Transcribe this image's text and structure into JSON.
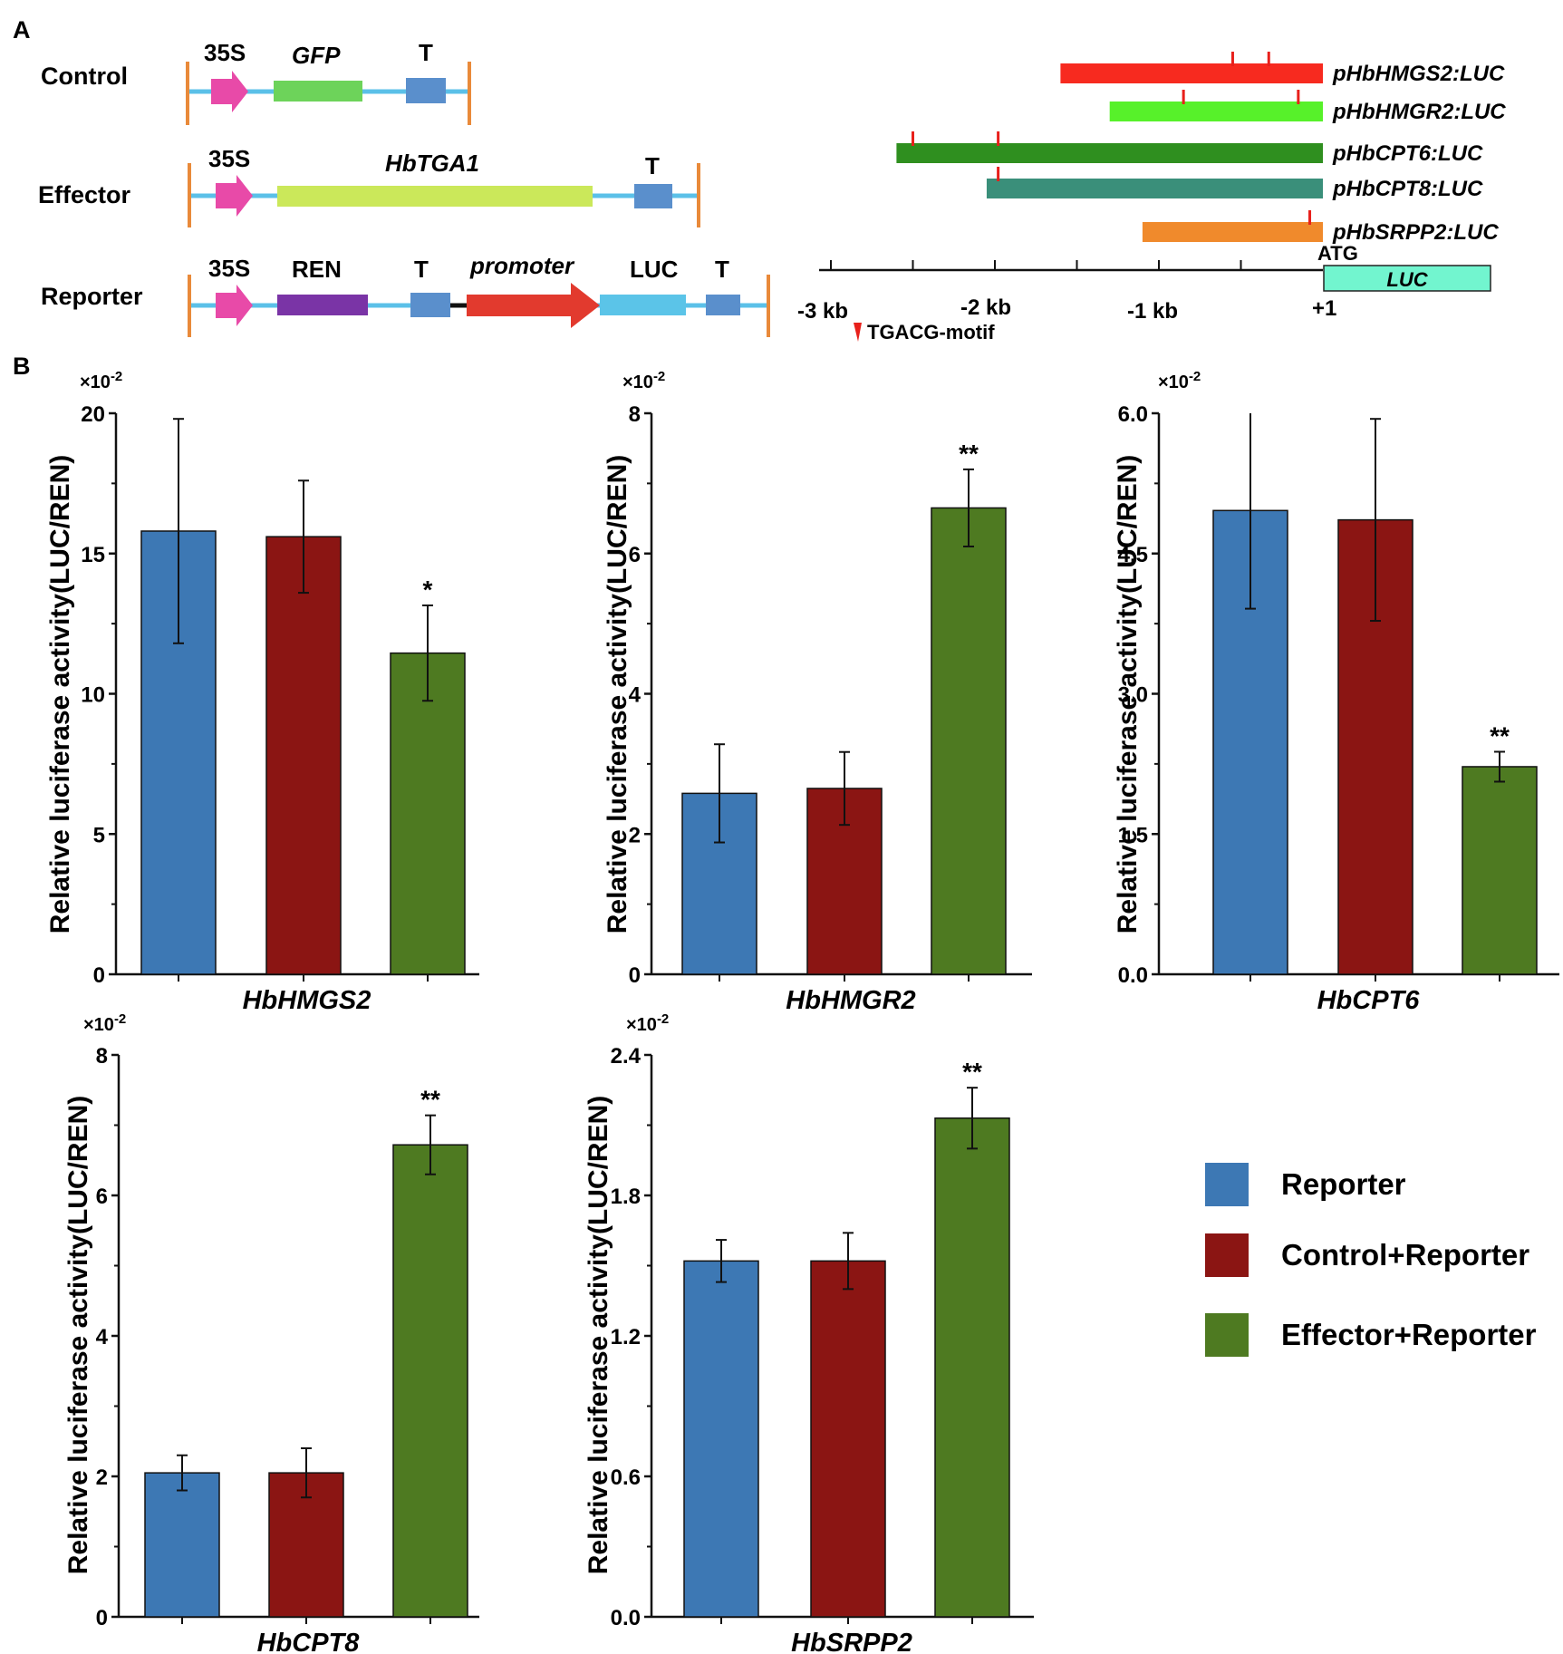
{
  "panel_labels": {
    "a": "A",
    "b": "B"
  },
  "colors": {
    "reporter": "#3d78b4",
    "control_reporter": "#8b1513",
    "effector_reporter": "#4e7a21",
    "backbone": "#5bc0e8",
    "border": "#e98a3a",
    "promoter_35s": "#e84aa8",
    "gfp": "#6dd35a",
    "terminator": "#5a8fcc",
    "hbtga1": "#cbe85a",
    "ren": "#7a34a6",
    "promoter_red": "#e23a2e",
    "luc_cds": "#5bc4e8",
    "motif": "#e8201b",
    "luc_box": "#72f5cf"
  },
  "constructs": [
    {
      "name": "Control",
      "labels": {
        "p35s": "35S",
        "cds": "GFP",
        "t": "T"
      }
    },
    {
      "name": "Effector",
      "labels": {
        "p35s": "35S",
        "cds": "HbTGA1",
        "t": "T"
      }
    },
    {
      "name": "Reporter",
      "labels": {
        "p35s": "35S",
        "ren": "REN",
        "t1": "T",
        "promoter": "promoter",
        "luc": "LUC",
        "t2": "T"
      }
    }
  ],
  "promoter_map": {
    "axis_labels": [
      "-3 kb",
      "-2 kb",
      "-1 kb",
      "+1"
    ],
    "atg_label": "ATG",
    "luc_label": "LUC",
    "motif_legend": "TGACG-motif",
    "promoters": [
      {
        "label": "pHbHMGS2:LUC",
        "start_kb": -1.6,
        "color": "#f72a1f",
        "motifs_kb": [
          -0.55,
          -0.33
        ]
      },
      {
        "label": "pHbHMGR2:LUC",
        "start_kb": -1.3,
        "color": "#57f12a",
        "motifs_kb": [
          -0.85,
          -0.15
        ]
      },
      {
        "label": "pHbCPT6:LUC",
        "start_kb": -2.6,
        "color": "#2f8f1f",
        "motifs_kb": [
          -2.5,
          -1.98
        ]
      },
      {
        "label": "pHbCPT8:LUC",
        "start_kb": -2.05,
        "color": "#3a8f7a",
        "motifs_kb": [
          -1.98
        ]
      },
      {
        "label": "pHbSRPP2:LUC",
        "start_kb": -1.1,
        "color": "#f08a2c",
        "motifs_kb": [
          -0.08
        ]
      }
    ]
  },
  "legend": {
    "items": [
      {
        "label": "Reporter",
        "color": "#3d78b4"
      },
      {
        "label": "Control+Reporter",
        "color": "#8b1513"
      },
      {
        "label": "Effector+Reporter",
        "color": "#4e7a21"
      }
    ]
  },
  "chart_data": [
    {
      "type": "bar",
      "title": "HbHMGS2",
      "xlabel": "HbHMGS2",
      "ylabel": "Relative luciferase activity(LUC/REN)",
      "scale_note": "×10-2",
      "ylim": [
        0,
        20
      ],
      "yticks": [
        0,
        5,
        10,
        15,
        20
      ],
      "ytick_labels": [
        "0",
        "5",
        "10",
        "15",
        "20"
      ],
      "categories": [
        "Reporter",
        "Control+Reporter",
        "Effector+Reporter"
      ],
      "values": [
        15.8,
        15.6,
        11.45
      ],
      "errors": [
        4.0,
        2.0,
        1.7
      ],
      "significance": [
        "",
        "",
        "*"
      ]
    },
    {
      "type": "bar",
      "title": "HbHMGR2",
      "xlabel": "HbHMGR2",
      "ylabel": "Relative luciferase activity(LUC/REN)",
      "scale_note": "×10-2",
      "ylim": [
        0,
        8
      ],
      "yticks": [
        0,
        2,
        4,
        6,
        8
      ],
      "ytick_labels": [
        "0",
        "2",
        "4",
        "6",
        "8"
      ],
      "categories": [
        "Reporter",
        "Control+Reporter",
        "Effector+Reporter"
      ],
      "values": [
        2.58,
        2.65,
        6.65
      ],
      "errors": [
        0.7,
        0.52,
        0.55
      ],
      "significance": [
        "",
        "",
        "**"
      ]
    },
    {
      "type": "bar",
      "title": "HbCPT6",
      "xlabel": "HbCPT6",
      "ylabel": "Relative luciferase activity(LUC/REN)",
      "scale_note": "×10-2",
      "ylim": [
        0,
        6
      ],
      "yticks": [
        0,
        1.5,
        3,
        4.5,
        6
      ],
      "ytick_labels": [
        "0.0",
        "1.5",
        "3.0",
        "4.5",
        "6.0"
      ],
      "categories": [
        "Reporter",
        "Control+Reporter",
        "Effector+Reporter"
      ],
      "values": [
        4.96,
        4.86,
        2.22
      ],
      "errors": [
        1.05,
        1.08,
        0.16
      ],
      "significance": [
        "",
        "",
        "**"
      ]
    },
    {
      "type": "bar",
      "title": "HbCPT8",
      "xlabel": "HbCPT8",
      "ylabel": "Relative luciferase activity(LUC/REN)",
      "scale_note": "×10-2",
      "ylim": [
        0,
        8
      ],
      "yticks": [
        0,
        2,
        4,
        6,
        8
      ],
      "ytick_labels": [
        "0",
        "2",
        "4",
        "6",
        "8"
      ],
      "categories": [
        "Reporter",
        "Control+Reporter",
        "Effector+Reporter"
      ],
      "values": [
        2.05,
        2.05,
        6.72
      ],
      "errors": [
        0.25,
        0.35,
        0.42
      ],
      "significance": [
        "",
        "",
        "**"
      ]
    },
    {
      "type": "bar",
      "title": "HbSRPP2",
      "xlabel": "HbSRPP2",
      "ylabel": "Relative luciferase activity(LUC/REN)",
      "scale_note": "×10-2",
      "ylim": [
        0,
        2.4
      ],
      "yticks": [
        0,
        0.6,
        1.2,
        1.8,
        2.4
      ],
      "ytick_labels": [
        "0.0",
        "0.6",
        "1.2",
        "1.8",
        "2.4"
      ],
      "categories": [
        "Reporter",
        "Control+Reporter",
        "Effector+Reporter"
      ],
      "values": [
        1.52,
        1.52,
        2.13
      ],
      "errors": [
        0.09,
        0.12,
        0.13
      ],
      "significance": [
        "",
        "",
        "**"
      ]
    }
  ]
}
